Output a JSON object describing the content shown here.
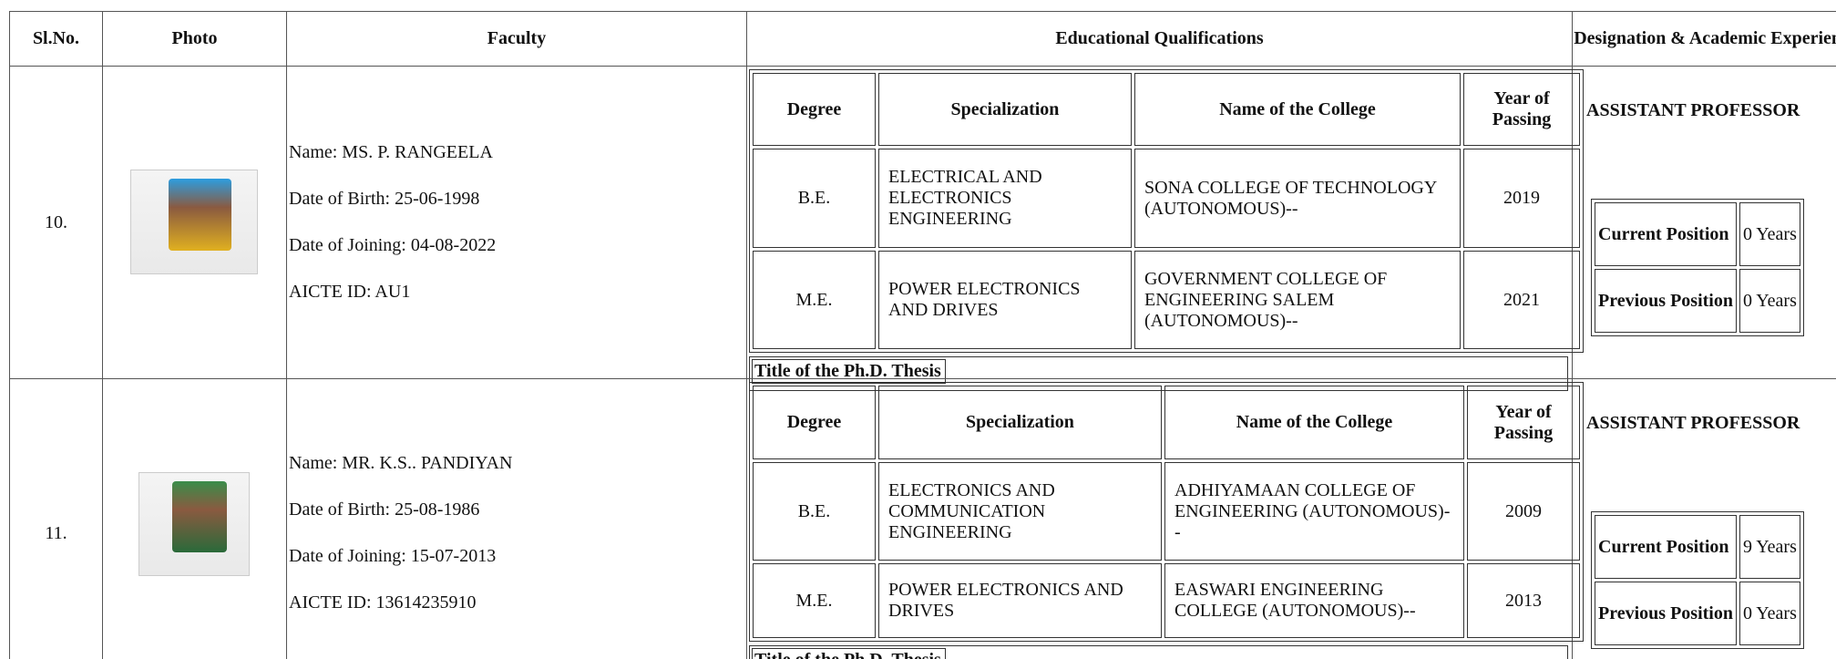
{
  "header": {
    "sl_no": "Sl.No.",
    "photo": "Photo",
    "faculty": "Faculty",
    "qualifications": "Educational Qualifications",
    "designation": "Designation & Academic Experience"
  },
  "faculty": [
    {
      "sl_no": "10.",
      "name": "Name: MS. P. RANGEELA",
      "dob": "Date of Birth: 25-06-1998",
      "doj": "Date of Joining: 04-08-2022",
      "aicte": "AICTE ID: AU1",
      "qual_headers": [
        "Degree",
        "Specialization",
        "Name of the College",
        "Year of Passing"
      ],
      "qualifications": [
        [
          "B.E.",
          "ELECTRICAL AND ELECTRONICS ENGINEERING",
          "SONA COLLEGE OF TECHNOLOGY (AUTONOMOUS)--",
          "2019"
        ],
        [
          "M.E.",
          "POWER ELECTRONICS AND DRIVES",
          "GOVERNMENT COLLEGE OF ENGINEERING SALEM (AUTONOMOUS)--",
          "2021"
        ]
      ],
      "thesis_label": "Title of the Ph.D. Thesis",
      "designation": "ASSISTANT PROFESSOR",
      "experience": [
        [
          "Current Position",
          "0 Years"
        ],
        [
          "Previous Position",
          "0 Years"
        ]
      ]
    },
    {
      "sl_no": "11.",
      "name": "Name: MR. K.S.. PANDIYAN",
      "dob": "Date of Birth: 25-08-1986",
      "doj": "Date of Joining: 15-07-2013",
      "aicte": "AICTE ID: 13614235910",
      "qual_headers": [
        "Degree",
        "Specialization",
        "Name of the College",
        "Year of Passing"
      ],
      "qualifications": [
        [
          "B.E.",
          "ELECTRONICS AND COMMUNICATION ENGINEERING",
          "ADHIYAMAAN COLLEGE OF ENGINEERING (AUTONOMOUS)--",
          "2009"
        ],
        [
          "M.E.",
          "POWER ELECTRONICS AND DRIVES",
          "EASWARI ENGINEERING COLLEGE (AUTONOMOUS)--",
          "2013"
        ]
      ],
      "thesis_label": "Title of the Ph.D. Thesis",
      "designation": "ASSISTANT PROFESSOR",
      "experience": [
        [
          "Current Position",
          "9 Years"
        ],
        [
          "Previous Position",
          "0 Years"
        ]
      ]
    }
  ]
}
